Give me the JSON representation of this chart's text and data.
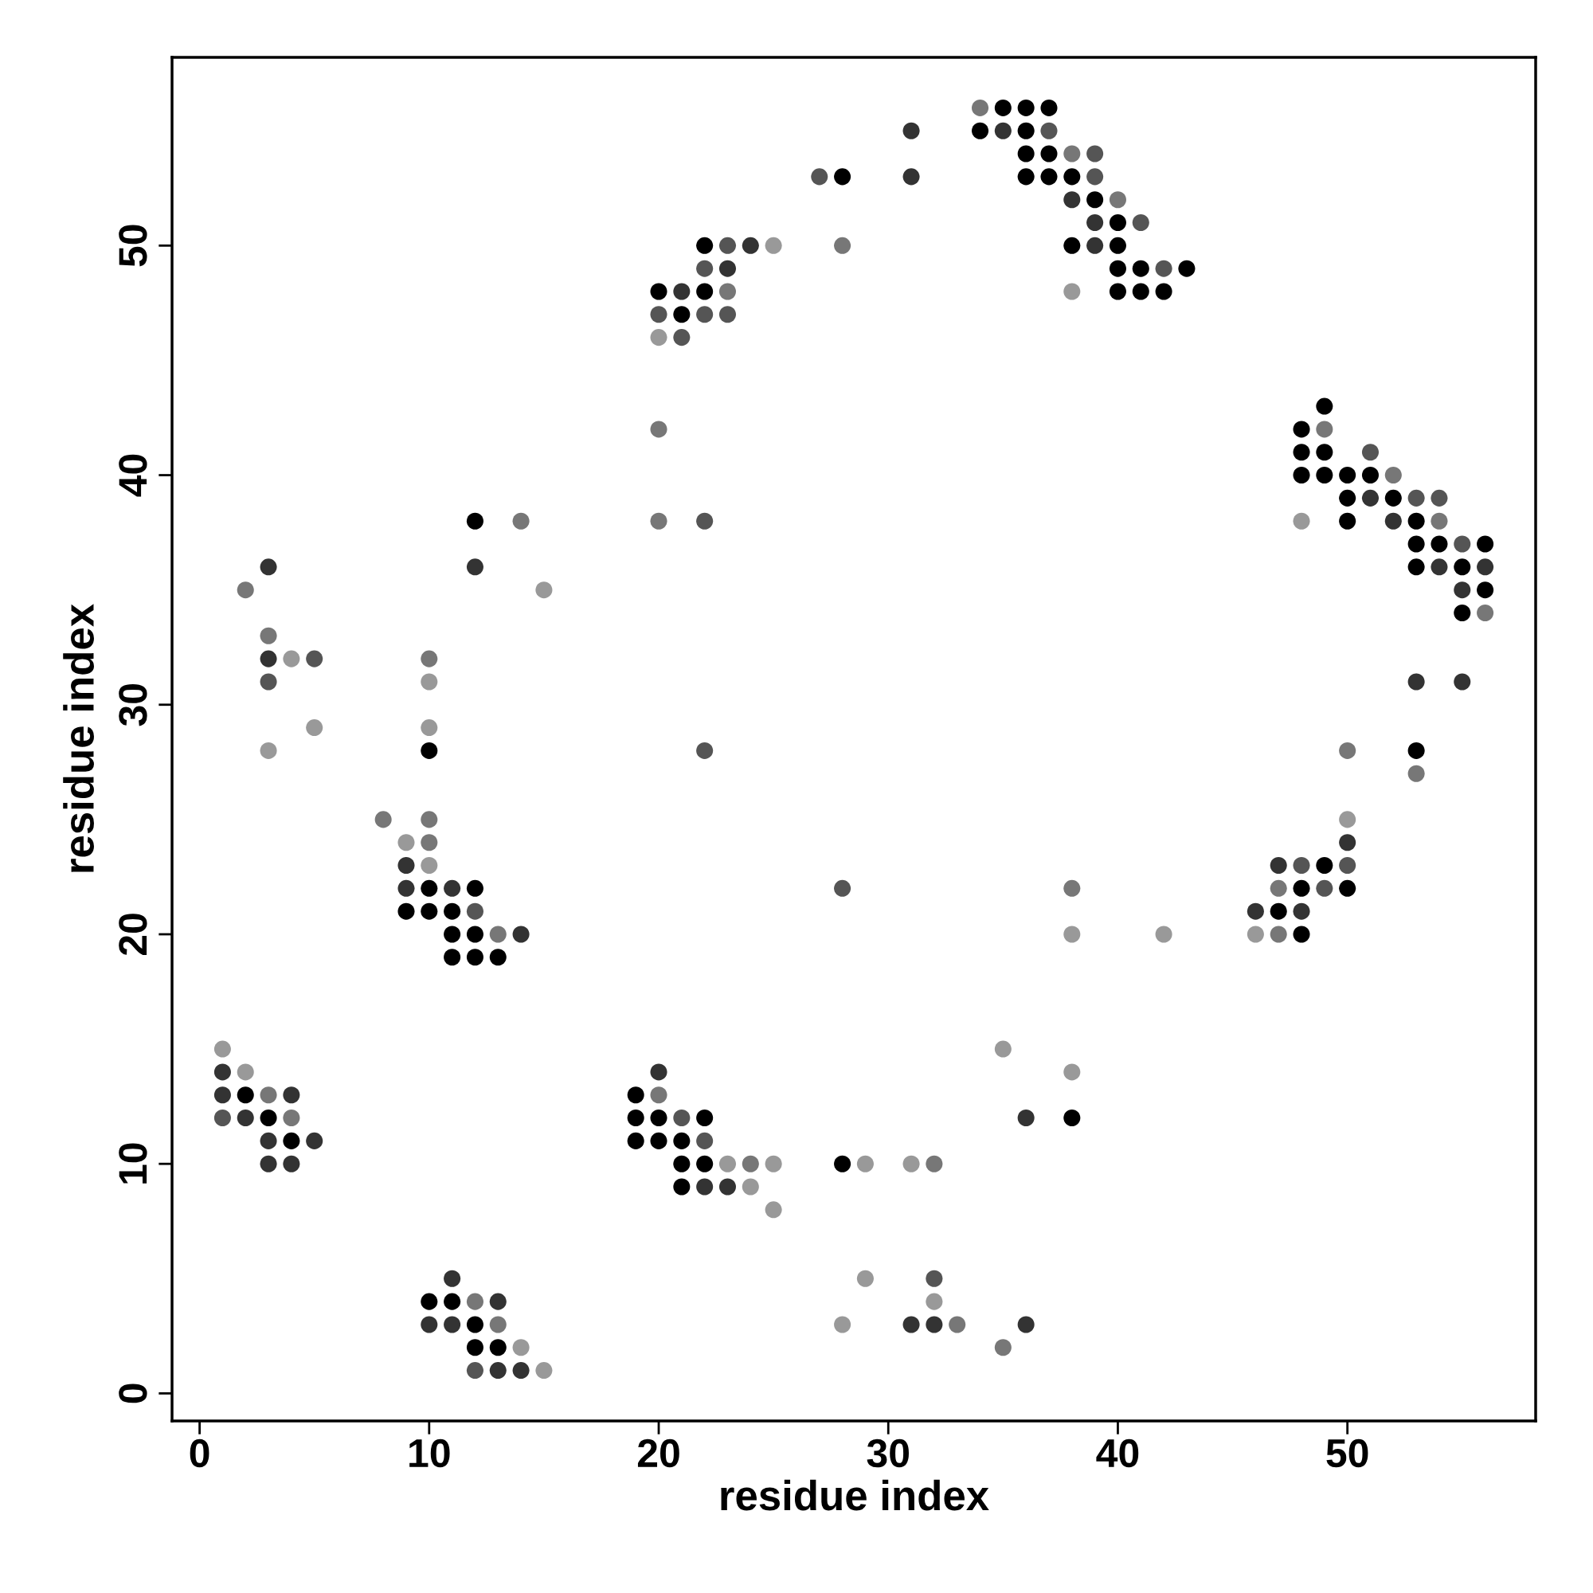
{
  "chart_data": {
    "type": "scatter",
    "xlabel": "residue index",
    "ylabel": "residue index",
    "xlim": [
      -1.2,
      58.2
    ],
    "ylim": [
      -1.2,
      58.2
    ],
    "xticks": [
      0,
      10,
      20,
      30,
      40,
      50
    ],
    "yticks": [
      0,
      10,
      20,
      30,
      40,
      50
    ],
    "grid": false,
    "legend": false,
    "marker": "circle",
    "series": [
      {
        "x": [
          34,
          35,
          36,
          37,
          34,
          35,
          36,
          37,
          31,
          36,
          37,
          38,
          39,
          36,
          37,
          38,
          39,
          31,
          27,
          28,
          38,
          39,
          40,
          39,
          40,
          41,
          22,
          23,
          24,
          25,
          28,
          38,
          39,
          40,
          22,
          23,
          40,
          41,
          42,
          43,
          20,
          21,
          22,
          23,
          38,
          40,
          41,
          42,
          20,
          21,
          22,
          23,
          20,
          21,
          20,
          49,
          48,
          49,
          48,
          49,
          51,
          48,
          49,
          50,
          51,
          52,
          50,
          51,
          52,
          53,
          54,
          12,
          14,
          20,
          22,
          48,
          50,
          52,
          53,
          54,
          53,
          54,
          55,
          56,
          3,
          12,
          53,
          54,
          55,
          56,
          2,
          15,
          55,
          56,
          55,
          56,
          3,
          3,
          4,
          5,
          10,
          3,
          10,
          53,
          55,
          5,
          10,
          3,
          10,
          22,
          50,
          53,
          53,
          8,
          10,
          50,
          9,
          10,
          50,
          9,
          10,
          47,
          48,
          49,
          50,
          9,
          10,
          11,
          12,
          28,
          38,
          47,
          48,
          49,
          50,
          9,
          10,
          11,
          12,
          46,
          47,
          48,
          11,
          12,
          13,
          14,
          38,
          42,
          46,
          47,
          48,
          11,
          12,
          13,
          1,
          35,
          1,
          2,
          20,
          38,
          1,
          2,
          3,
          4,
          19,
          20,
          1,
          2,
          3,
          4,
          19,
          20,
          21,
          22,
          36,
          38,
          3,
          4,
          5,
          19,
          20,
          21,
          22,
          3,
          4,
          21,
          22,
          23,
          24,
          25,
          28,
          29,
          31,
          32,
          21,
          22,
          23,
          24,
          25,
          11,
          29,
          32,
          10,
          11,
          12,
          13,
          32,
          10,
          11,
          12,
          13,
          28,
          31,
          32,
          33,
          36,
          12,
          13,
          14,
          35,
          12,
          13,
          14,
          15
        ],
        "values": [
          56,
          56,
          56,
          56,
          55,
          55,
          55,
          55,
          55,
          54,
          54,
          54,
          54,
          53,
          53,
          53,
          53,
          53,
          53,
          53,
          52,
          52,
          52,
          51,
          51,
          51,
          50,
          50,
          50,
          50,
          50,
          50,
          50,
          50,
          49,
          49,
          49,
          49,
          49,
          49,
          48,
          48,
          48,
          48,
          48,
          48,
          48,
          48,
          47,
          47,
          47,
          47,
          46,
          46,
          42,
          43,
          42,
          42,
          41,
          41,
          41,
          40,
          40,
          40,
          40,
          40,
          39,
          39,
          39,
          39,
          39,
          38,
          38,
          38,
          38,
          38,
          38,
          38,
          38,
          38,
          37,
          37,
          37,
          37,
          36,
          36,
          36,
          36,
          36,
          36,
          35,
          35,
          35,
          35,
          34,
          34,
          33,
          32,
          32,
          32,
          32,
          31,
          31,
          31,
          31,
          29,
          29,
          28,
          28,
          28,
          28,
          28,
          27,
          25,
          25,
          25,
          24,
          24,
          24,
          23,
          23,
          23,
          23,
          23,
          23,
          22,
          22,
          22,
          22,
          22,
          22,
          22,
          22,
          22,
          22,
          21,
          21,
          21,
          21,
          21,
          21,
          21,
          20,
          20,
          20,
          20,
          20,
          20,
          20,
          20,
          20,
          19,
          19,
          19,
          15,
          15,
          14,
          14,
          14,
          14,
          13,
          13,
          13,
          13,
          13,
          13,
          12,
          12,
          12,
          12,
          12,
          12,
          12,
          12,
          12,
          12,
          11,
          11,
          11,
          11,
          11,
          11,
          11,
          10,
          10,
          10,
          10,
          10,
          10,
          10,
          10,
          10,
          10,
          10,
          9,
          9,
          9,
          9,
          8,
          5,
          5,
          5,
          4,
          4,
          4,
          4,
          4,
          3,
          3,
          3,
          3,
          3,
          3,
          3,
          3,
          3,
          2,
          2,
          2,
          2,
          1,
          1,
          1,
          1
        ],
        "colors": [
          "#777777",
          "#000000",
          "#000000",
          "#000000",
          "#000000",
          "#333333",
          "#000000",
          "#555555",
          "#333333",
          "#000000",
          "#000000",
          "#777777",
          "#555555",
          "#000000",
          "#000000",
          "#000000",
          "#555555",
          "#333333",
          "#555555",
          "#000000",
          "#333333",
          "#000000",
          "#777777",
          "#333333",
          "#000000",
          "#555555",
          "#000000",
          "#555555",
          "#333333",
          "#999999",
          "#777777",
          "#000000",
          "#333333",
          "#000000",
          "#555555",
          "#333333",
          "#000000",
          "#000000",
          "#555555",
          "#000000",
          "#000000",
          "#333333",
          "#000000",
          "#777777",
          "#999999",
          "#000000",
          "#000000",
          "#000000",
          "#555555",
          "#000000",
          "#555555",
          "#555555",
          "#999999",
          "#555555",
          "#777777",
          "#000000",
          "#000000",
          "#777777",
          "#000000",
          "#000000",
          "#555555",
          "#000000",
          "#000000",
          "#000000",
          "#000000",
          "#777777",
          "#000000",
          "#333333",
          "#000000",
          "#555555",
          "#555555",
          "#000000",
          "#777777",
          "#777777",
          "#555555",
          "#999999",
          "#000000",
          "#333333",
          "#000000",
          "#777777",
          "#000000",
          "#000000",
          "#555555",
          "#000000",
          "#333333",
          "#333333",
          "#000000",
          "#333333",
          "#000000",
          "#333333",
          "#777777",
          "#999999",
          "#333333",
          "#000000",
          "#000000",
          "#777777",
          "#777777",
          "#333333",
          "#999999",
          "#555555",
          "#777777",
          "#555555",
          "#999999",
          "#333333",
          "#333333",
          "#999999",
          "#999999",
          "#999999",
          "#000000",
          "#555555",
          "#777777",
          "#000000",
          "#777777",
          "#777777",
          "#777777",
          "#999999",
          "#999999",
          "#777777",
          "#333333",
          "#333333",
          "#999999",
          "#333333",
          "#555555",
          "#000000",
          "#555555",
          "#333333",
          "#000000",
          "#333333",
          "#000000",
          "#555555",
          "#777777",
          "#777777",
          "#000000",
          "#555555",
          "#000000",
          "#000000",
          "#000000",
          "#000000",
          "#555555",
          "#333333",
          "#000000",
          "#333333",
          "#000000",
          "#000000",
          "#777777",
          "#333333",
          "#999999",
          "#999999",
          "#999999",
          "#777777",
          "#000000",
          "#000000",
          "#000000",
          "#000000",
          "#999999",
          "#999999",
          "#333333",
          "#999999",
          "#333333",
          "#999999",
          "#333333",
          "#000000",
          "#777777",
          "#333333",
          "#000000",
          "#777777",
          "#555555",
          "#333333",
          "#000000",
          "#777777",
          "#000000",
          "#000000",
          "#555555",
          "#000000",
          "#333333",
          "#000000",
          "#333333",
          "#000000",
          "#333333",
          "#000000",
          "#000000",
          "#000000",
          "#555555",
          "#333333",
          "#333333",
          "#000000",
          "#000000",
          "#999999",
          "#777777",
          "#999999",
          "#000000",
          "#999999",
          "#999999",
          "#777777",
          "#000000",
          "#333333",
          "#333333",
          "#999999",
          "#999999",
          "#333333",
          "#999999",
          "#555555",
          "#000000",
          "#000000",
          "#777777",
          "#333333",
          "#999999",
          "#333333",
          "#333333",
          "#000000",
          "#777777",
          "#999999",
          "#333333",
          "#333333",
          "#777777",
          "#333333",
          "#000000",
          "#000000",
          "#999999",
          "#777777",
          "#555555",
          "#333333",
          "#333333",
          "#999999"
        ]
      }
    ]
  }
}
